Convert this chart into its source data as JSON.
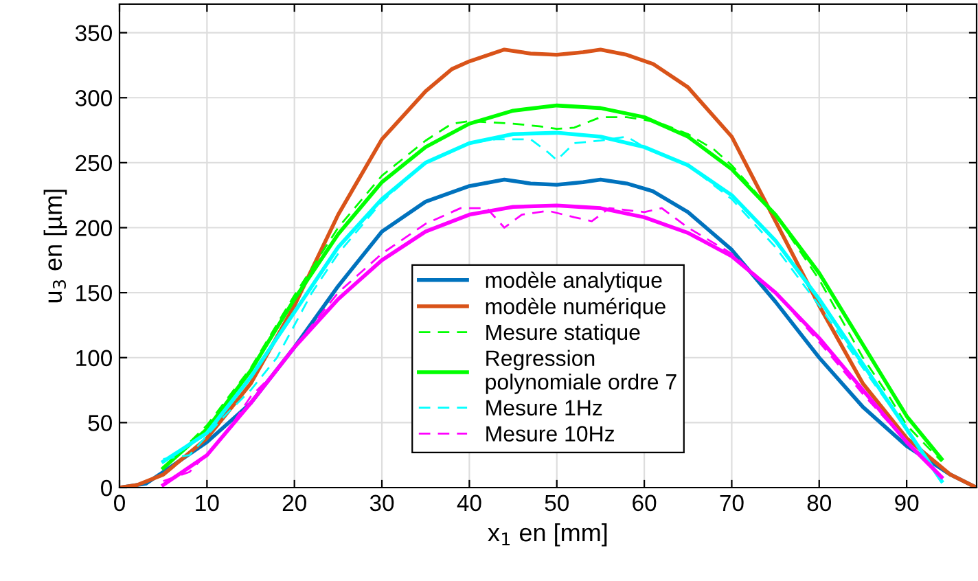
{
  "chart_data": {
    "type": "line",
    "xlabel": "x$_{1}$ en [mm]",
    "ylabel": "u$_{3}$ en [µm]",
    "xlim": [
      0,
      98
    ],
    "xticks": [
      0,
      10,
      20,
      30,
      40,
      50,
      60,
      70,
      80,
      90
    ],
    "ylim": [
      0,
      372
    ],
    "yticks": [
      0,
      50,
      100,
      150,
      200,
      250,
      300,
      350
    ],
    "grid": true,
    "legend": "bottom",
    "marker": "none",
    "series": [
      {
        "name": "modèle analytique",
        "color": "#0072bd",
        "line_style": "solid",
        "x": [
          0,
          3,
          5,
          10,
          15,
          20,
          25,
          30,
          35,
          40,
          44,
          47,
          50,
          53,
          55,
          58,
          61,
          65,
          70,
          75,
          80,
          85,
          90,
          95,
          98
        ],
        "values": [
          0,
          3,
          12,
          35,
          65,
          108,
          155,
          197,
          220,
          232,
          237,
          234,
          233,
          235,
          237,
          234,
          228,
          212,
          183,
          143,
          100,
          62,
          32,
          10,
          0
        ]
      },
      {
        "name": "modèle numérique",
        "color": "#d95319",
        "line_style": "solid",
        "x": [
          0,
          2,
          5,
          10,
          15,
          20,
          25,
          30,
          35,
          38,
          40,
          44,
          47,
          50,
          53,
          55,
          58,
          61,
          65,
          70,
          75,
          80,
          85,
          90,
          95,
          98
        ],
        "values": [
          0,
          2,
          10,
          38,
          80,
          140,
          210,
          268,
          305,
          322,
          328,
          337,
          334,
          333,
          335,
          337,
          333,
          326,
          308,
          270,
          205,
          140,
          80,
          38,
          10,
          0
        ]
      },
      {
        "name": "Mesure statique",
        "color": "#00ff00",
        "line_style": "dashed",
        "x": [
          5,
          10,
          15,
          20,
          25,
          30,
          35,
          38,
          40,
          45,
          48,
          50,
          52,
          55,
          58,
          60,
          62,
          65,
          68,
          70,
          75,
          80,
          85,
          88,
          90,
          94
        ],
        "values": [
          15,
          48,
          92,
          148,
          200,
          240,
          267,
          280,
          282,
          280,
          278,
          276,
          277,
          285,
          285,
          283,
          280,
          272,
          260,
          248,
          210,
          160,
          100,
          70,
          48,
          20
        ]
      },
      {
        "name": "Regression\npolynomiale ordre 7",
        "color": "#00ff00",
        "line_style": "solid",
        "x": [
          5,
          10,
          15,
          20,
          25,
          30,
          35,
          40,
          45,
          50,
          55,
          60,
          65,
          70,
          75,
          80,
          85,
          90,
          94
        ],
        "values": [
          15,
          45,
          90,
          145,
          195,
          235,
          262,
          280,
          290,
          294,
          292,
          285,
          270,
          245,
          210,
          165,
          110,
          55,
          22
        ]
      },
      {
        "name": "Mesure 1Hz",
        "color": "#00ffff",
        "line_style": "dashed",
        "x": [
          5,
          8,
          12,
          15,
          18,
          22,
          25,
          30,
          35,
          40,
          43,
          47,
          49,
          50,
          52,
          55,
          58,
          60,
          65,
          70,
          75,
          80,
          85,
          90,
          94
        ],
        "values": [
          22,
          25,
          55,
          75,
          100,
          150,
          180,
          220,
          250,
          265,
          268,
          268,
          258,
          252,
          265,
          267,
          270,
          262,
          248,
          222,
          185,
          140,
          92,
          45,
          5
        ]
      },
      {
        "name": "Mesure 10Hz",
        "color": "#ff00ff",
        "line_style": "dashed",
        "x": [
          5,
          8,
          12,
          15,
          18,
          20,
          25,
          30,
          35,
          39,
          42,
          44,
          46,
          49,
          52,
          54,
          56,
          60,
          62,
          65,
          70,
          75,
          80,
          85,
          90,
          94
        ],
        "values": [
          5,
          12,
          40,
          70,
          90,
          108,
          150,
          180,
          203,
          215,
          215,
          200,
          210,
          213,
          208,
          205,
          215,
          212,
          215,
          200,
          180,
          150,
          112,
          72,
          35,
          8
        ]
      },
      {
        "color": "#00ffff",
        "line_style": "solid",
        "x": [
          5,
          10,
          15,
          20,
          25,
          30,
          35,
          40,
          45,
          50,
          55,
          60,
          65,
          70,
          75,
          80,
          85,
          90,
          94
        ],
        "values": [
          20,
          42,
          85,
          135,
          185,
          222,
          250,
          265,
          272,
          273,
          270,
          262,
          248,
          225,
          190,
          145,
          95,
          45,
          5
        ]
      },
      {
        "color": "#ff00ff",
        "line_style": "solid",
        "x": [
          5,
          10,
          15,
          20,
          25,
          30,
          35,
          40,
          45,
          50,
          55,
          60,
          65,
          70,
          75,
          80,
          85,
          90,
          94
        ],
        "values": [
          2,
          25,
          65,
          108,
          145,
          175,
          197,
          210,
          216,
          217,
          215,
          208,
          196,
          178,
          150,
          115,
          75,
          35,
          8
        ]
      }
    ]
  }
}
